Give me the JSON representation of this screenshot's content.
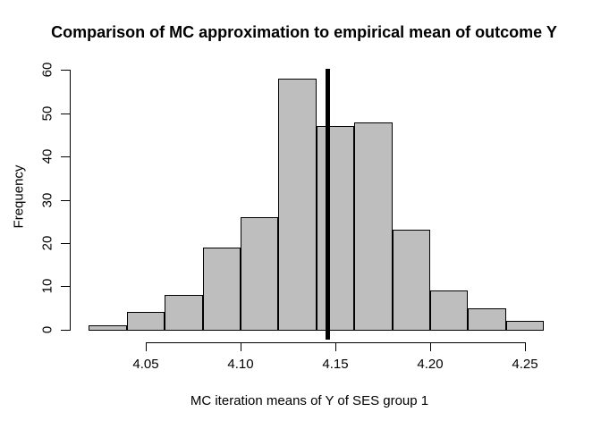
{
  "title": "Comparison of MC approximation to empirical mean of outcome Y",
  "chart_data": {
    "type": "bar",
    "subtype": "histogram",
    "title": "Comparison of MC approximation to empirical mean of outcome Y",
    "xlabel": "MC iteration means of Y of SES group 1",
    "ylabel": "Frequency",
    "bin_edges": [
      4.02,
      4.04,
      4.06,
      4.08,
      4.1,
      4.12,
      4.14,
      4.16,
      4.18,
      4.2,
      4.22,
      4.24,
      4.26
    ],
    "counts": [
      1,
      4,
      8,
      19,
      26,
      58,
      47,
      48,
      23,
      9,
      5,
      2
    ],
    "x_ticks": [
      {
        "value": 4.05,
        "label": "4.05"
      },
      {
        "value": 4.1,
        "label": "4.10"
      },
      {
        "value": 4.15,
        "label": "4.15"
      },
      {
        "value": 4.2,
        "label": "4.20"
      },
      {
        "value": 4.25,
        "label": "4.25"
      }
    ],
    "y_ticks": [
      {
        "value": 0,
        "label": "0"
      },
      {
        "value": 10,
        "label": "10"
      },
      {
        "value": 20,
        "label": "20"
      },
      {
        "value": 30,
        "label": "30"
      },
      {
        "value": 40,
        "label": "40"
      },
      {
        "value": 50,
        "label": "50"
      },
      {
        "value": 60,
        "label": "60"
      }
    ],
    "xlim": [
      4.02,
      4.26
    ],
    "ylim": [
      0,
      60
    ],
    "grid": false,
    "legend": "none",
    "mean_line": {
      "value": 4.146,
      "color": "#000000",
      "thickness_px": 5
    },
    "colors": {
      "bar_fill": "#bebebe",
      "bar_border": "#000000",
      "axis": "#000000",
      "text": "#000000",
      "background": "#ffffff"
    }
  }
}
